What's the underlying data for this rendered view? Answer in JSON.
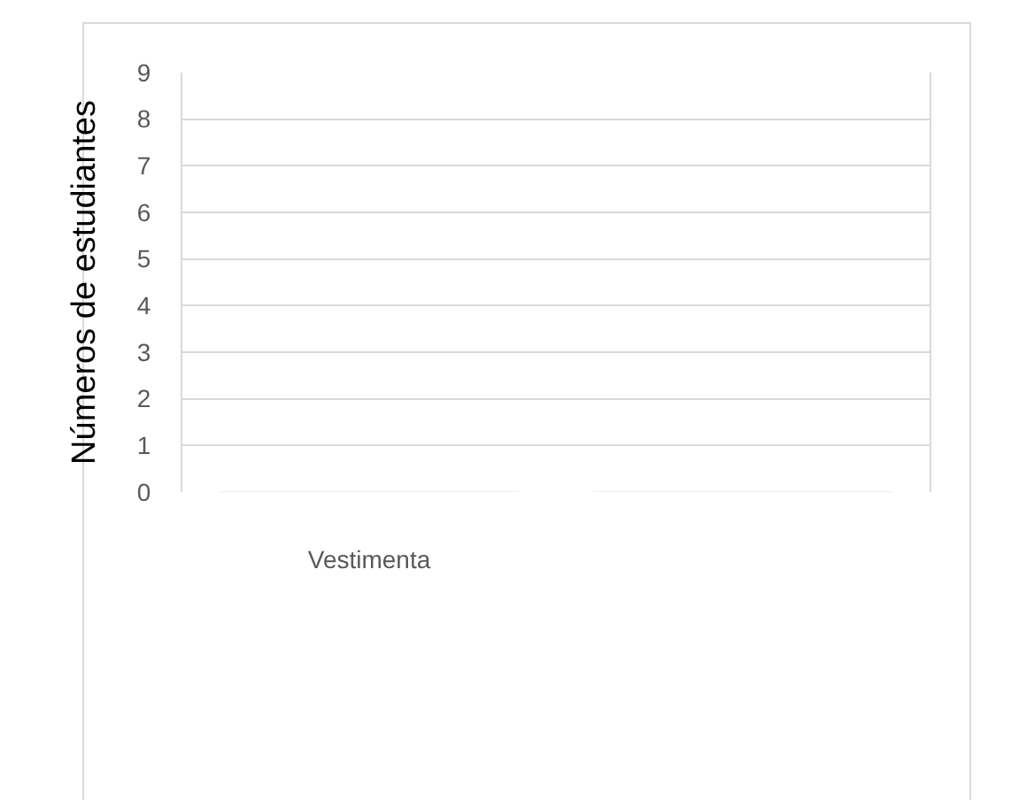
{
  "chart_data": {
    "type": "bar",
    "ylabel": "Números de estudiantes",
    "categories": [
      "Vestimenta",
      null
    ],
    "values": [
      0,
      0
    ],
    "ylim": [
      0,
      9
    ],
    "yticks": [
      0,
      1,
      2,
      3,
      4,
      5,
      6,
      7,
      8,
      9
    ],
    "grid": "y"
  }
}
